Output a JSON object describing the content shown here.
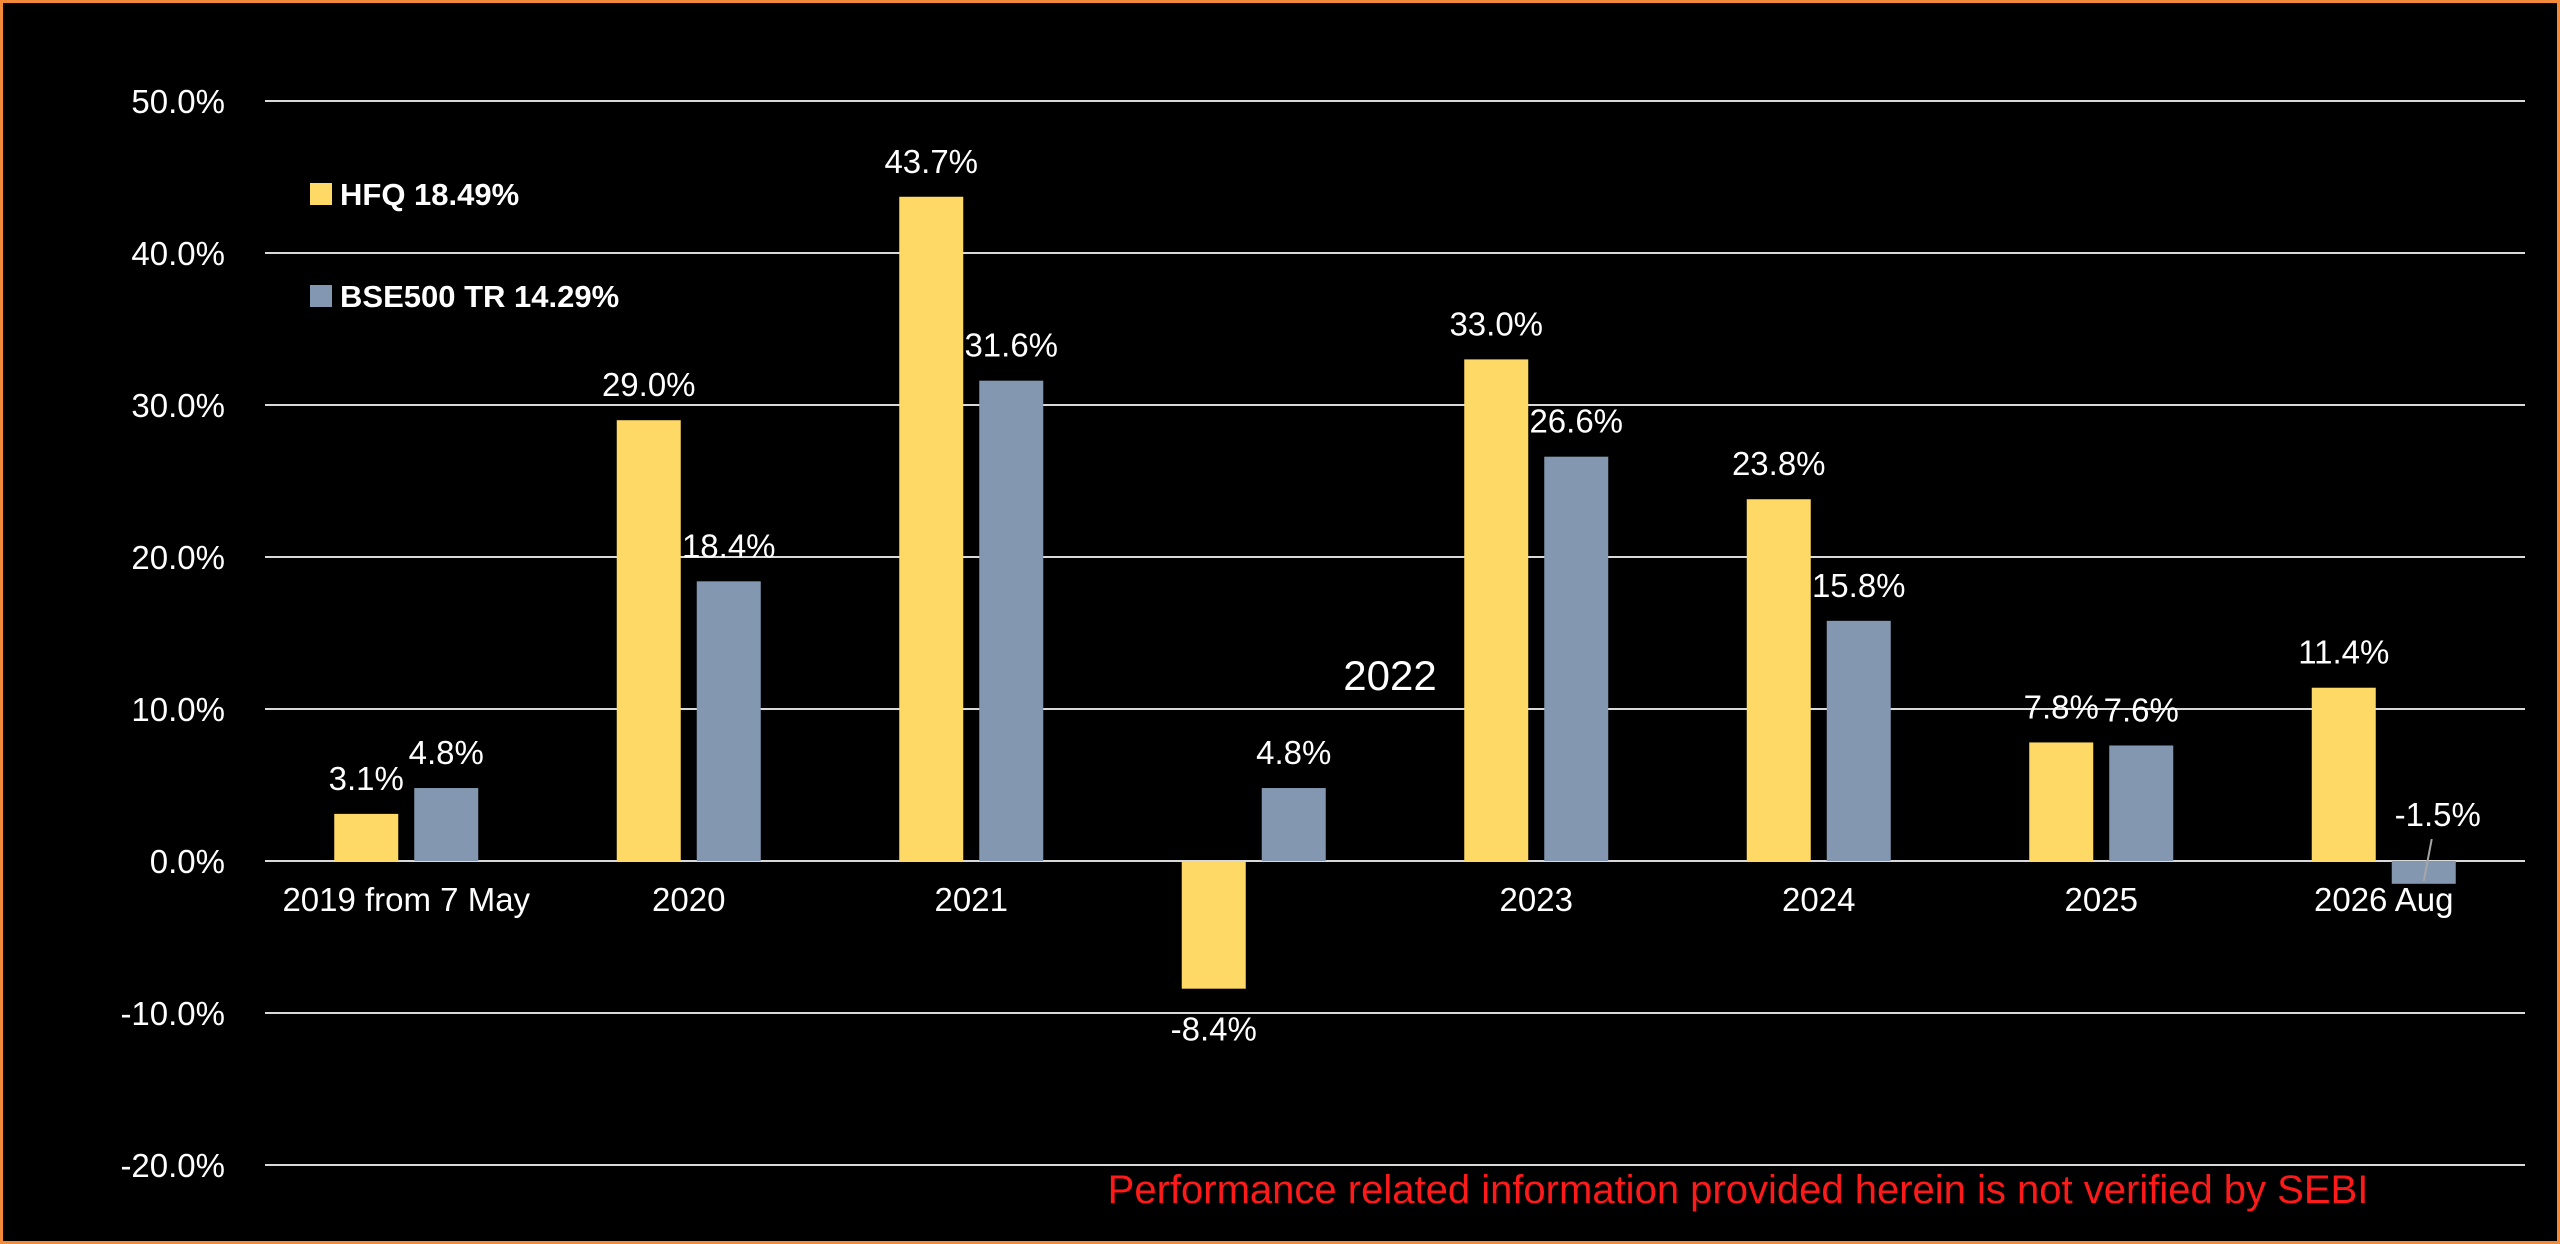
{
  "chart_data": {
    "type": "bar",
    "categories": [
      "2019 from 7 May",
      "2020",
      "2021",
      "",
      "2023",
      "2024",
      "2025",
      "2026 Aug"
    ],
    "series": [
      {
        "name": "HFQ 18.49%",
        "color": "#ffd966",
        "values": [
          3.1,
          29.0,
          43.7,
          -8.4,
          33.0,
          23.8,
          7.8,
          11.4
        ],
        "labels": [
          "3.1%",
          "29.0%",
          "43.7%",
          "-8.4%",
          "33.0%",
          "23.8%",
          "7.8%",
          "11.4%"
        ]
      },
      {
        "name": "BSE500 TR 14.29%",
        "color": "#8497b0",
        "values": [
          4.8,
          18.4,
          31.6,
          4.8,
          26.6,
          15.8,
          7.6,
          -1.5
        ],
        "labels": [
          "4.8%",
          "18.4%",
          "31.6%",
          "4.8%",
          "26.6%",
          "15.8%",
          "7.6%",
          "-1.5%"
        ]
      }
    ],
    "ylim": [
      -20,
      50
    ],
    "yticks": [
      50,
      40,
      30,
      20,
      10,
      0,
      -10,
      -20
    ],
    "ytick_labels": [
      "50.0%",
      "40.0%",
      "30.0%",
      "20.0%",
      "10.0%",
      "0.0%",
      "-10.0%",
      "-20.0%"
    ],
    "grid": true,
    "legend_position": "top-left",
    "annotations": [
      "2022"
    ],
    "disclaimer": "Performance related information provided herein is not verified by SEBI",
    "background": "#000000",
    "border_color": "#f28a3a"
  }
}
